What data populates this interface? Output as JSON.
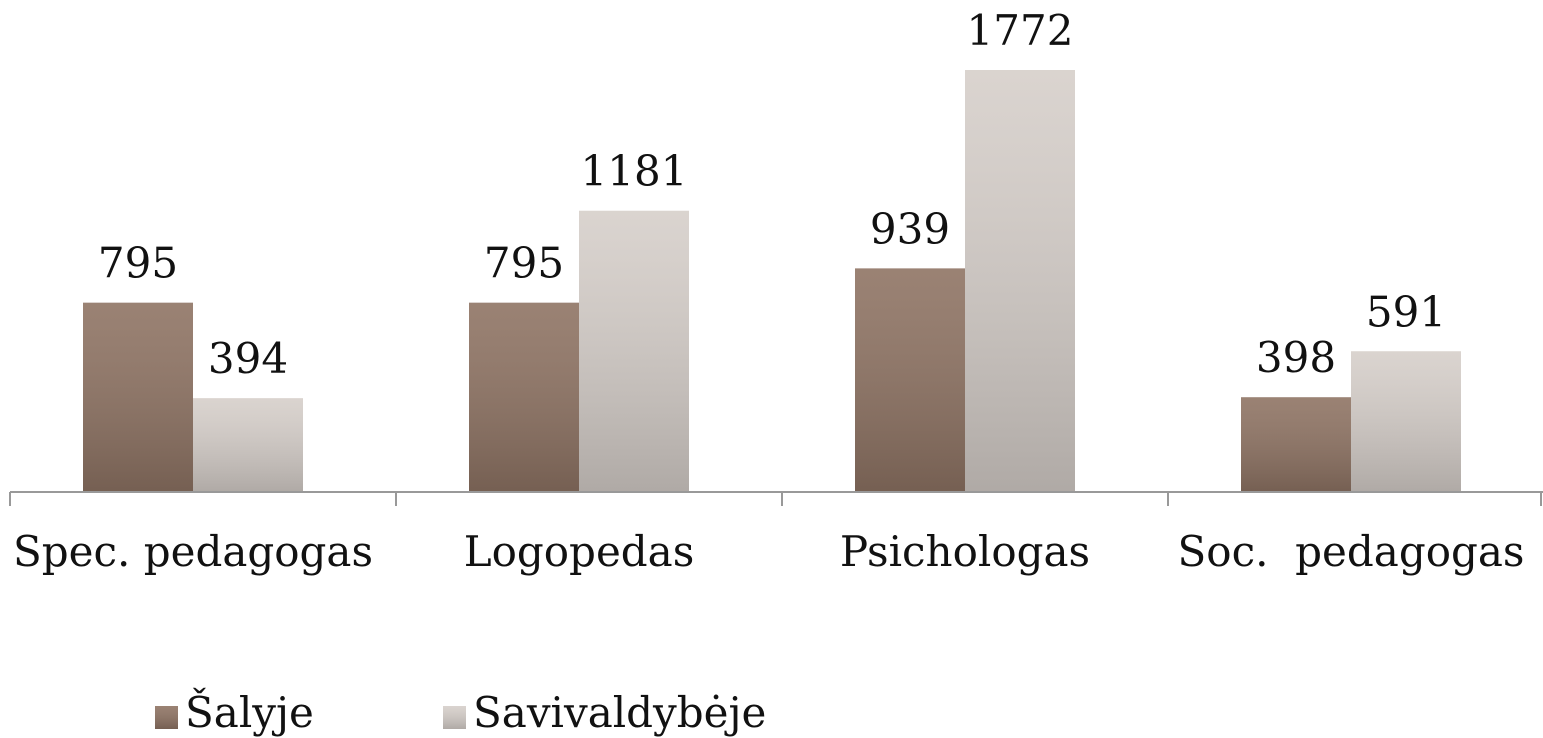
{
  "chart_data": {
    "type": "bar",
    "categories": [
      "Spec. pedagogas",
      "Logopedas",
      "Psichologas",
      "Soc.  pedagogas"
    ],
    "series": [
      {
        "name": "Šalyje",
        "color": "#8f7464",
        "values": [
          795,
          795,
          939,
          398
        ]
      },
      {
        "name": "Savivaldybėje",
        "color": "#d6cfca",
        "values": [
          394,
          1181,
          1772,
          591
        ]
      }
    ]
  }
}
